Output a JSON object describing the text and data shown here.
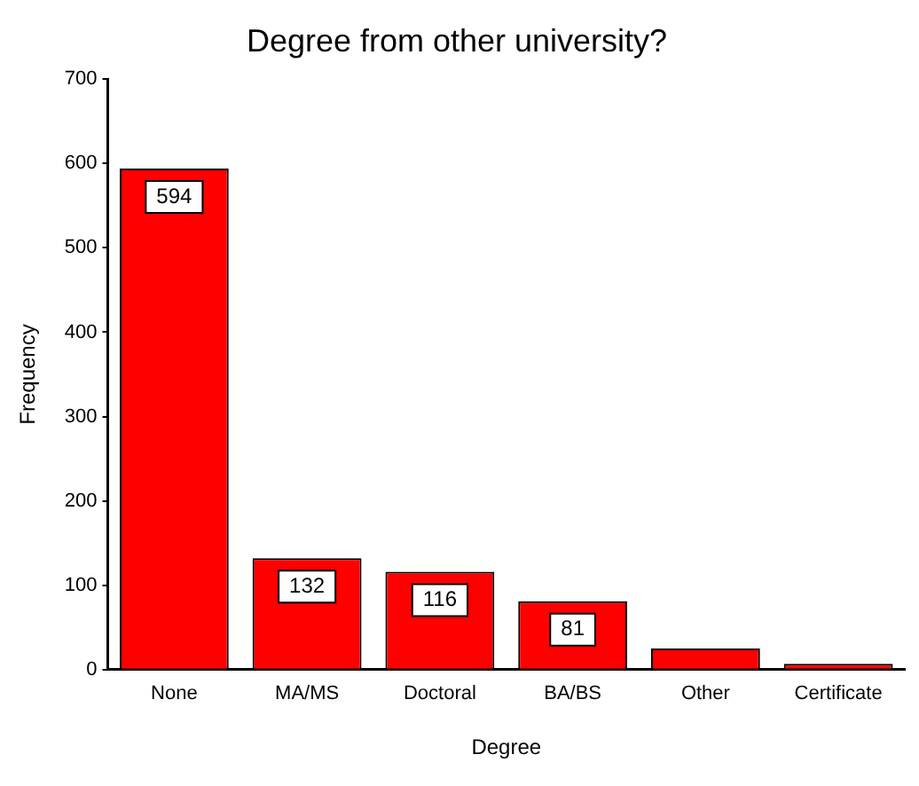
{
  "chart_data": {
    "type": "bar",
    "title": "Degree from other university?",
    "xlabel": "Degree",
    "ylabel": "Frequency",
    "categories": [
      "None",
      "MA/MS",
      "Doctoral",
      "BA/BS",
      "Other",
      "Certificate"
    ],
    "values": [
      594,
      132,
      116,
      81,
      25,
      7
    ],
    "value_labels": [
      "594",
      "132",
      "116",
      "81",
      null,
      null
    ],
    "color": "#ff0000",
    "ylim": [
      0,
      700
    ],
    "yticks": [
      0,
      100,
      200,
      300,
      400,
      500,
      600,
      700
    ],
    "grid": false,
    "legend": false
  }
}
